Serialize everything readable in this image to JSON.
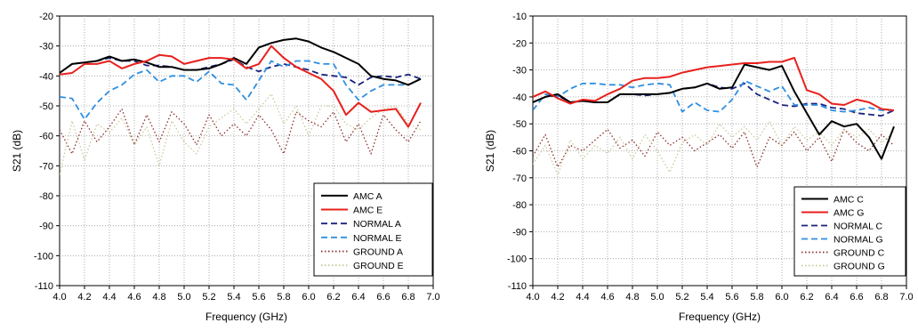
{
  "chart_data": [
    {
      "type": "line",
      "xlabel": "Frequency (GHz)",
      "ylabel": "S21 (dB)",
      "xlim": [
        4.0,
        7.0
      ],
      "ylim": [
        -110,
        -20
      ],
      "xticks": [
        "4.0",
        "4.2",
        "4.4",
        "4.6",
        "4.8",
        "5.0",
        "5.2",
        "5.4",
        "5.6",
        "5.8",
        "6.0",
        "6.2",
        "6.4",
        "6.6",
        "6.8",
        "7.0"
      ],
      "yticks": [
        "-20",
        "-30",
        "-40",
        "-50",
        "-60",
        "-70",
        "-80",
        "-90",
        "-100",
        "-110"
      ],
      "grid": "dotted",
      "legend_position": "bottom-right",
      "series": [
        {
          "name": "AMC A",
          "color": "#000000",
          "style": "solid",
          "x": [
            4.0,
            4.1,
            4.2,
            4.3,
            4.4,
            4.5,
            4.6,
            4.7,
            4.8,
            4.9,
            5.0,
            5.1,
            5.2,
            5.3,
            5.4,
            5.5,
            5.6,
            5.7,
            5.8,
            5.9,
            6.0,
            6.1,
            6.2,
            6.3,
            6.4,
            6.5,
            6.6,
            6.7,
            6.8,
            6.9
          ],
          "y": [
            -39,
            -36,
            -35.5,
            -35,
            -33.5,
            -35,
            -34.5,
            -35.5,
            -37,
            -37,
            -38,
            -38,
            -37.5,
            -36,
            -34,
            -36,
            -30.5,
            -29,
            -28,
            -27.5,
            -28.5,
            -30.5,
            -32,
            -34,
            -36,
            -40,
            -41,
            -41.5,
            -43,
            -41
          ]
        },
        {
          "name": "AMC E",
          "color": "#e8201c",
          "style": "solid",
          "x": [
            4.0,
            4.1,
            4.2,
            4.3,
            4.4,
            4.5,
            4.6,
            4.7,
            4.8,
            4.9,
            5.0,
            5.1,
            5.2,
            5.3,
            5.4,
            5.5,
            5.6,
            5.7,
            5.8,
            5.9,
            6.0,
            6.1,
            6.2,
            6.3,
            6.4,
            6.5,
            6.6,
            6.7,
            6.8,
            6.9
          ],
          "y": [
            -39.5,
            -39,
            -36,
            -36,
            -35,
            -37.5,
            -36,
            -35,
            -33,
            -33.5,
            -36,
            -35,
            -34,
            -34,
            -34.5,
            -37.5,
            -36,
            -30,
            -34,
            -37,
            -39,
            -41,
            -45,
            -53,
            -49,
            -52,
            -51.5,
            -51,
            -57,
            -49
          ]
        },
        {
          "name": "NORMAL A",
          "color": "#1a237e",
          "style": "dashed",
          "x": [
            4.0,
            4.1,
            4.2,
            4.3,
            4.4,
            4.5,
            4.6,
            4.7,
            4.8,
            4.9,
            5.0,
            5.1,
            5.2,
            5.3,
            5.4,
            5.5,
            5.6,
            5.7,
            5.8,
            5.9,
            6.0,
            6.1,
            6.2,
            6.3,
            6.4,
            6.5,
            6.6,
            6.7,
            6.8,
            6.9
          ],
          "y": [
            -39,
            -36,
            -35.5,
            -35,
            -34,
            -35,
            -35,
            -36.5,
            -36.5,
            -37,
            -38,
            -38,
            -37,
            -36,
            -34.5,
            -37,
            -38.5,
            -37,
            -36,
            -37,
            -38,
            -39.5,
            -40,
            -40.5,
            -43,
            -40.5,
            -40,
            -40.5,
            -39.5,
            -41
          ]
        },
        {
          "name": "NORMAL E",
          "color": "#2f8fe0",
          "style": "dashed",
          "x": [
            4.0,
            4.1,
            4.2,
            4.3,
            4.4,
            4.5,
            4.6,
            4.7,
            4.8,
            4.9,
            5.0,
            5.1,
            5.2,
            5.3,
            5.4,
            5.5,
            5.6,
            5.7,
            5.8,
            5.9,
            6.0,
            6.1,
            6.2,
            6.3,
            6.4,
            6.5,
            6.6,
            6.7,
            6.8,
            6.9
          ],
          "y": [
            -47,
            -47.5,
            -54.5,
            -49,
            -45,
            -43,
            -39.5,
            -38,
            -42,
            -40,
            -40,
            -42,
            -38.5,
            -42.5,
            -43,
            -48,
            -41.5,
            -35,
            -37,
            -35,
            -35,
            -36,
            -36,
            -43,
            -48,
            -45,
            -43,
            -43,
            -43,
            -41
          ]
        },
        {
          "name": "GROUND A",
          "color": "#8b2c2c",
          "style": "dotted",
          "x": [
            4.0,
            4.1,
            4.2,
            4.3,
            4.4,
            4.5,
            4.6,
            4.7,
            4.8,
            4.9,
            5.0,
            5.1,
            5.2,
            5.3,
            5.4,
            5.5,
            5.6,
            5.7,
            5.8,
            5.9,
            6.0,
            6.1,
            6.2,
            6.3,
            6.4,
            6.5,
            6.6,
            6.7,
            6.8,
            6.9
          ],
          "y": [
            -58,
            -66,
            -55,
            -62,
            -57,
            -51,
            -63,
            -53,
            -62,
            -52,
            -56,
            -63,
            -53,
            -60,
            -56,
            -60,
            -53,
            -58,
            -66,
            -52,
            -55,
            -57,
            -52,
            -62,
            -56,
            -66,
            -53,
            -58,
            -62,
            -55
          ]
        },
        {
          "name": "GROUND E",
          "color": "#c8c89a",
          "style": "dotted",
          "x": [
            4.0,
            4.1,
            4.2,
            4.3,
            4.4,
            4.5,
            4.6,
            4.7,
            4.8,
            4.9,
            5.0,
            5.1,
            5.2,
            5.3,
            5.4,
            5.5,
            5.6,
            5.7,
            5.8,
            5.9,
            6.0,
            6.1,
            6.2,
            6.3,
            6.4,
            6.5,
            6.6,
            6.7,
            6.8,
            6.9
          ],
          "y": [
            -73,
            -55,
            -68,
            -56,
            -59,
            -54,
            -63,
            -57,
            -70,
            -55,
            -62,
            -66,
            -57,
            -54,
            -51,
            -56,
            -51,
            -46,
            -56,
            -50,
            -60,
            -50,
            -50,
            -56,
            -58,
            -54,
            -51,
            -50,
            -56,
            -58
          ]
        }
      ]
    },
    {
      "type": "line",
      "xlabel": "Frequency (GHz)",
      "ylabel": "S21 (dB)",
      "xlim": [
        4.0,
        7.0
      ],
      "ylim": [
        -110,
        -10
      ],
      "xticks": [
        "4.0",
        "4.2",
        "4.4",
        "4.6",
        "4.8",
        "5.0",
        "5.2",
        "5.4",
        "5.6",
        "5.8",
        "6.0",
        "6.2",
        "6.4",
        "6.6",
        "6.8",
        "7.0"
      ],
      "yticks": [
        "-10",
        "-20",
        "-30",
        "-40",
        "-50",
        "-60",
        "-70",
        "-80",
        "-90",
        "-100",
        "-110"
      ],
      "grid": "dotted",
      "legend_position": "bottom-right",
      "series": [
        {
          "name": "AMC C",
          "color": "#000000",
          "style": "solid",
          "x": [
            4.0,
            4.1,
            4.2,
            4.3,
            4.4,
            4.5,
            4.6,
            4.7,
            4.8,
            4.9,
            5.0,
            5.1,
            5.2,
            5.3,
            5.4,
            5.5,
            5.6,
            5.7,
            5.8,
            5.9,
            6.0,
            6.1,
            6.2,
            6.3,
            6.4,
            6.5,
            6.6,
            6.7,
            6.8,
            6.9
          ],
          "y": [
            -42,
            -40,
            -39,
            -42,
            -41.5,
            -42,
            -42,
            -39,
            -39,
            -39,
            -39,
            -38.5,
            -37,
            -36.5,
            -35,
            -37,
            -36.5,
            -28,
            -29,
            -30,
            -28.5,
            -38,
            -46,
            -54,
            -49,
            -51,
            -50,
            -55,
            -63,
            -51
          ]
        },
        {
          "name": "AMC G",
          "color": "#e8201c",
          "style": "solid",
          "x": [
            4.0,
            4.1,
            4.2,
            4.3,
            4.4,
            4.5,
            4.6,
            4.7,
            4.8,
            4.9,
            5.0,
            5.1,
            5.2,
            5.3,
            5.4,
            5.5,
            5.6,
            5.7,
            5.8,
            5.9,
            6.0,
            6.1,
            6.2,
            6.3,
            6.4,
            6.5,
            6.6,
            6.7,
            6.8,
            6.9
          ],
          "y": [
            -40,
            -38,
            -40.5,
            -42.5,
            -41,
            -41.5,
            -39,
            -37,
            -34,
            -33,
            -33,
            -32.5,
            -31,
            -30,
            -29,
            -28.5,
            -28,
            -27.5,
            -27.5,
            -27,
            -27,
            -25.5,
            -37.5,
            -39,
            -42.5,
            -43,
            -41,
            -42,
            -44.5,
            -45
          ]
        },
        {
          "name": "NORMAL C",
          "color": "#1a237e",
          "style": "dashed",
          "x": [
            4.0,
            4.1,
            4.2,
            4.3,
            4.4,
            4.5,
            4.6,
            4.7,
            4.8,
            4.9,
            5.0,
            5.1,
            5.2,
            5.3,
            5.4,
            5.5,
            5.6,
            5.7,
            5.8,
            5.9,
            6.0,
            6.1,
            6.2,
            6.3,
            6.4,
            6.5,
            6.6,
            6.7,
            6.8,
            6.9
          ],
          "y": [
            -42,
            -40,
            -39.5,
            -42,
            -41.5,
            -42,
            -42,
            -39,
            -39,
            -39.5,
            -39,
            -38.5,
            -37,
            -36.5,
            -35,
            -36.5,
            -37,
            -35,
            -39,
            -41,
            -43,
            -43.5,
            -42.5,
            -42.5,
            -44,
            -44.5,
            -46,
            -46.5,
            -47,
            -45
          ]
        },
        {
          "name": "NORMAL G",
          "color": "#2f8fe0",
          "style": "dashed",
          "x": [
            4.0,
            4.1,
            4.2,
            4.3,
            4.4,
            4.5,
            4.6,
            4.7,
            4.8,
            4.9,
            5.0,
            5.1,
            5.2,
            5.3,
            5.4,
            5.5,
            5.6,
            5.7,
            5.8,
            5.9,
            6.0,
            6.1,
            6.2,
            6.3,
            6.4,
            6.5,
            6.6,
            6.7,
            6.8,
            6.9
          ],
          "y": [
            -45,
            -39,
            -40,
            -37,
            -35,
            -35,
            -35.5,
            -35.5,
            -36.5,
            -35.5,
            -35,
            -35.5,
            -45.5,
            -42,
            -45,
            -45.5,
            -41,
            -34,
            -36,
            -38,
            -36,
            -43,
            -43,
            -43,
            -45,
            -45.5,
            -45,
            -44,
            -45,
            -45
          ]
        },
        {
          "name": "GROUND C",
          "color": "#8b2c2c",
          "style": "dotted",
          "x": [
            4.0,
            4.1,
            4.2,
            4.3,
            4.4,
            4.5,
            4.6,
            4.7,
            4.8,
            4.9,
            5.0,
            5.1,
            5.2,
            5.3,
            5.4,
            5.5,
            5.6,
            5.7,
            5.8,
            5.9,
            6.0,
            6.1,
            6.2,
            6.3,
            6.4,
            6.5,
            6.6,
            6.7,
            6.8,
            6.9
          ],
          "y": [
            -62,
            -54,
            -66,
            -58,
            -60,
            -56,
            -52,
            -59,
            -56,
            -62,
            -53,
            -58,
            -55,
            -60,
            -57,
            -54,
            -59,
            -53,
            -66,
            -55,
            -58,
            -53,
            -60,
            -55,
            -64,
            -52,
            -57,
            -60,
            -54,
            -58
          ]
        },
        {
          "name": "GROUND G",
          "color": "#c8c89a",
          "style": "dotted",
          "x": [
            4.0,
            4.1,
            4.2,
            4.3,
            4.4,
            4.5,
            4.6,
            4.7,
            4.8,
            4.9,
            5.0,
            5.1,
            5.2,
            5.3,
            5.4,
            5.5,
            5.6,
            5.7,
            5.8,
            5.9,
            6.0,
            6.1,
            6.2,
            6.3,
            6.4,
            6.5,
            6.6,
            6.7,
            6.8,
            6.9
          ],
          "y": [
            -65,
            -58,
            -69,
            -56,
            -63,
            -58,
            -61,
            -55,
            -63,
            -54,
            -60,
            -68,
            -57,
            -54,
            -58,
            -50,
            -55,
            -51,
            -56,
            -49,
            -58,
            -51,
            -56,
            -53,
            -58,
            -52,
            -55,
            -52,
            -57,
            -53
          ]
        }
      ]
    }
  ]
}
